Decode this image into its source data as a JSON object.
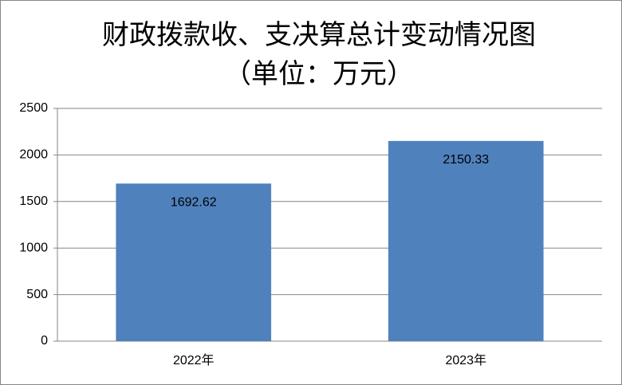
{
  "chart_data": {
    "type": "bar",
    "title": "财政拨款收、支决算总计变动情况图",
    "subtitle": "（单位：万元）",
    "categories": [
      "2022年",
      "2023年"
    ],
    "values": [
      1692.62,
      2150.33
    ],
    "color": "#4f81bd",
    "ylim": [
      0,
      2500
    ],
    "yticks": [
      0,
      500,
      1000,
      1500,
      2000,
      2500
    ],
    "grid": true
  }
}
